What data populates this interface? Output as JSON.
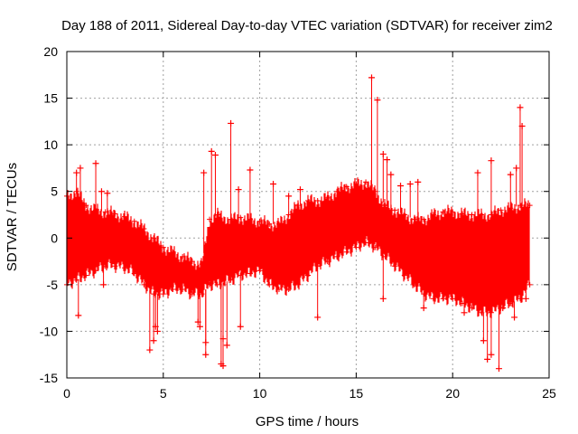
{
  "chart_data": {
    "type": "scatter",
    "title": "Day 188 of 2011, Sidereal Day-to-day VTEC variation (SDTVAR) for receiver zim2",
    "xlabel": "GPS time / hours",
    "ylabel": "SDTVAR / TECUs",
    "xlim": [
      0,
      25
    ],
    "ylim": [
      -15,
      20
    ],
    "xticks": [
      0,
      5,
      10,
      15,
      20,
      25
    ],
    "yticks": [
      -15,
      -10,
      -5,
      0,
      5,
      10,
      15,
      20
    ],
    "xtick_labels": [
      "0",
      "5",
      "10",
      "15",
      "20",
      "25"
    ],
    "ytick_labels": [
      "-15",
      "-10",
      "-5",
      "0",
      "5",
      "10",
      "15",
      "20"
    ],
    "grid": true,
    "marker": "+",
    "color": "#ff0000",
    "series": [
      {
        "name": "SDTVAR",
        "envelope": {
          "description": "dense band of points; values are [hour, lower, upper] in TECU",
          "points": [
            [
              0.0,
              -5.0,
              4.5
            ],
            [
              0.5,
              -4.5,
              5.0
            ],
            [
              1.0,
              -4.0,
              3.5
            ],
            [
              1.5,
              -3.5,
              3.0
            ],
            [
              2.0,
              -3.0,
              2.8
            ],
            [
              2.5,
              -3.0,
              2.6
            ],
            [
              3.0,
              -3.2,
              2.3
            ],
            [
              3.5,
              -3.8,
              1.8
            ],
            [
              4.0,
              -5.0,
              1.0
            ],
            [
              4.5,
              -6.0,
              0.0
            ],
            [
              5.0,
              -6.0,
              -1.0
            ],
            [
              5.5,
              -5.5,
              -1.5
            ],
            [
              6.0,
              -5.5,
              -2.0
            ],
            [
              6.5,
              -6.0,
              -2.5
            ],
            [
              7.0,
              -6.0,
              -2.8
            ],
            [
              7.4,
              -5.0,
              2.0
            ],
            [
              7.8,
              -5.0,
              2.5
            ],
            [
              8.5,
              -4.5,
              2.0
            ],
            [
              9.0,
              -4.0,
              2.2
            ],
            [
              9.5,
              -3.8,
              2.0
            ],
            [
              10.0,
              -3.5,
              1.8
            ],
            [
              10.5,
              -5.0,
              1.5
            ],
            [
              11.0,
              -5.5,
              1.5
            ],
            [
              11.5,
              -5.5,
              2.5
            ],
            [
              12.0,
              -5.0,
              3.5
            ],
            [
              12.5,
              -4.0,
              4.0
            ],
            [
              13.0,
              -3.0,
              4.0
            ],
            [
              13.5,
              -2.5,
              4.3
            ],
            [
              14.0,
              -2.0,
              5.0
            ],
            [
              14.5,
              -1.5,
              5.5
            ],
            [
              15.0,
              -1.0,
              5.8
            ],
            [
              15.5,
              -0.5,
              6.0
            ],
            [
              16.0,
              -1.0,
              5.0
            ],
            [
              16.5,
              -2.0,
              3.5
            ],
            [
              17.0,
              -3.0,
              3.0
            ],
            [
              17.5,
              -4.0,
              2.5
            ],
            [
              18.0,
              -5.0,
              2.0
            ],
            [
              18.5,
              -6.0,
              2.0
            ],
            [
              19.0,
              -6.5,
              2.5
            ],
            [
              19.5,
              -6.5,
              2.8
            ],
            [
              20.0,
              -6.5,
              2.8
            ],
            [
              20.5,
              -7.0,
              2.6
            ],
            [
              21.0,
              -7.5,
              2.5
            ],
            [
              21.5,
              -8.0,
              2.5
            ],
            [
              22.0,
              -8.0,
              2.5
            ],
            [
              22.5,
              -7.5,
              3.0
            ],
            [
              23.0,
              -7.0,
              3.2
            ],
            [
              23.5,
              -6.5,
              3.5
            ],
            [
              24.0,
              -5.0,
              3.5
            ]
          ]
        },
        "outliers": [
          [
            0.5,
            7.0
          ],
          [
            0.7,
            7.5
          ],
          [
            1.5,
            8.0
          ],
          [
            1.8,
            5.0
          ],
          [
            2.1,
            4.8
          ],
          [
            0.6,
            -8.3
          ],
          [
            1.9,
            -5.0
          ],
          [
            4.3,
            -12.0
          ],
          [
            4.5,
            -11.0
          ],
          [
            4.6,
            -9.5
          ],
          [
            4.7,
            -10.0
          ],
          [
            6.8,
            -9.0
          ],
          [
            6.9,
            -9.5
          ],
          [
            7.1,
            7.0
          ],
          [
            7.2,
            -12.5
          ],
          [
            7.2,
            -11.2
          ],
          [
            7.5,
            9.3
          ],
          [
            7.7,
            8.9
          ],
          [
            8.0,
            -13.5
          ],
          [
            8.1,
            -13.7
          ],
          [
            8.1,
            -10.8
          ],
          [
            8.3,
            -11.5
          ],
          [
            8.5,
            12.3
          ],
          [
            9.0,
            -9.5
          ],
          [
            8.9,
            5.2
          ],
          [
            9.5,
            7.3
          ],
          [
            10.7,
            5.8
          ],
          [
            11.5,
            4.5
          ],
          [
            12.1,
            5.2
          ],
          [
            13.0,
            -8.5
          ],
          [
            15.8,
            17.2
          ],
          [
            16.1,
            14.8
          ],
          [
            16.4,
            9.0
          ],
          [
            16.4,
            -6.5
          ],
          [
            16.6,
            8.4
          ],
          [
            16.8,
            6.8
          ],
          [
            17.3,
            5.6
          ],
          [
            17.8,
            5.8
          ],
          [
            18.2,
            6.0
          ],
          [
            18.5,
            -7.5
          ],
          [
            20.6,
            -8.0
          ],
          [
            21.3,
            7.0
          ],
          [
            21.6,
            -11.0
          ],
          [
            21.8,
            -13.0
          ],
          [
            22.0,
            8.3
          ],
          [
            22.0,
            -12.5
          ],
          [
            22.4,
            -14.0
          ],
          [
            22.6,
            -7.5
          ],
          [
            23.0,
            6.8
          ],
          [
            23.3,
            7.5
          ],
          [
            23.5,
            14.0
          ],
          [
            23.6,
            12.0
          ],
          [
            23.2,
            -8.5
          ],
          [
            23.8,
            -6.5
          ]
        ]
      }
    ]
  }
}
